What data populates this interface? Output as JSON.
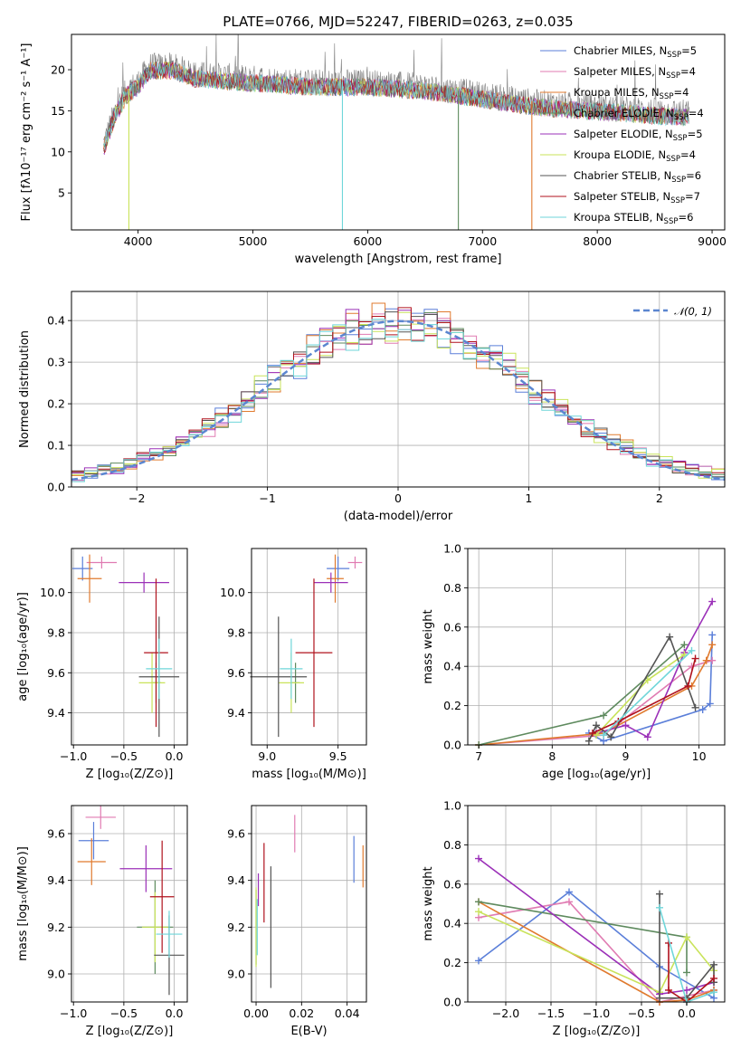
{
  "figure": {
    "title": "PLATE=0766, MJD=52247, FIBERID=0263, z=0.035"
  },
  "colors": {
    "Chabrier MILES": "#5b7fd9",
    "Salpeter MILES": "#e07bb2",
    "Kroupa MILES": "#e07a2e",
    "Chabrier ELODIE": "#5e8a5e",
    "Salpeter ELODIE": "#9b30b8",
    "Kroupa ELODIE": "#c9e35a",
    "Chabrier STELIB": "#545454",
    "Salpeter STELIB": "#b0121d",
    "Kroupa STELIB": "#6fd6d9",
    "data": "#808080",
    "normal": "#5b86d0",
    "grid": "#b0b0b0"
  },
  "legend": [
    {
      "name": "Chabrier MILES",
      "n": "5"
    },
    {
      "name": "Salpeter MILES",
      "n": "4"
    },
    {
      "name": "Kroupa MILES",
      "n": "4"
    },
    {
      "name": "Chabrier ELODIE",
      "n": "4"
    },
    {
      "name": "Salpeter ELODIE",
      "n": "5"
    },
    {
      "name": "Kroupa ELODIE",
      "n": "4"
    },
    {
      "name": "Chabrier STELIB",
      "n": "6"
    },
    {
      "name": "Salpeter STELIB",
      "n": "7"
    },
    {
      "name": "Kroupa STELIB",
      "n": "6"
    }
  ],
  "chart_data": [
    {
      "id": "spectrum",
      "type": "line",
      "title": "PLATE=0766, MJD=52247, FIBERID=0263, z=0.035",
      "xlabel": "wavelength [Angstrom, rest frame]",
      "ylabel": "Flux [fλ10⁻¹⁷ erg cm⁻² s⁻¹ A⁻¹]",
      "xlim": [
        3420,
        9110
      ],
      "ylim": [
        0.5,
        24.3
      ],
      "xticks": [
        4000,
        5000,
        6000,
        7000,
        8000,
        9000
      ],
      "yticks": [
        5,
        10,
        15,
        20
      ],
      "grid": false,
      "legend_position": "upper right",
      "continuum_knots": {
        "x": [
          3700,
          3800,
          3900,
          4000,
          4100,
          4300,
          4500,
          5000,
          5500,
          6000,
          6500,
          7000,
          7500,
          8000,
          8500,
          8800
        ],
        "y": [
          11,
          15,
          17.5,
          18.5,
          20.5,
          20.5,
          19.5,
          19,
          18.5,
          18.5,
          18,
          17,
          16,
          15.5,
          15,
          14.8
        ]
      },
      "drops": [
        {
          "series": "Kroupa ELODIE",
          "x": 3920,
          "to": 0.5
        },
        {
          "series": "Chabrier ELODIE",
          "x": 6790,
          "to": 0.5
        },
        {
          "series": "Kroupa STELIB",
          "x": 5780,
          "to": 0.5
        },
        {
          "series": "Kroupa MILES",
          "x": 7430,
          "to": 0.5
        }
      ]
    },
    {
      "id": "residuals",
      "type": "histogram",
      "xlabel": "(data-model)/error",
      "ylabel": "Normed distribution",
      "xlim": [
        -2.5,
        2.5
      ],
      "ylim": [
        0,
        0.47
      ],
      "xticks": [
        -2,
        -1,
        0,
        1,
        2
      ],
      "yticks": [
        0.0,
        0.1,
        0.2,
        0.3,
        0.4
      ],
      "grid": true,
      "bin_width": 0.1,
      "reference": {
        "name": "𝒩(0, 1)",
        "mean": 0,
        "sigma": 1
      },
      "legend_position": "upper right"
    },
    {
      "id": "age-vs-Z",
      "type": "scatter",
      "xlabel": "Z [log₁₀(Z/Z⊙)]",
      "ylabel": "age  [log₁₀(age/yr)]",
      "xlim": [
        -1.02,
        0.13
      ],
      "ylim": [
        9.24,
        10.22
      ],
      "xticks": [
        -1.0,
        -0.5,
        0.0
      ],
      "yticks": [
        9.4,
        9.6,
        9.8,
        10.0
      ],
      "grid": true,
      "points": [
        {
          "series": "Chabrier MILES",
          "x": -0.91,
          "xerr": 0.1,
          "y": 10.12,
          "yerr": 0.06
        },
        {
          "series": "Salpeter MILES",
          "x": -0.72,
          "xerr": 0.15,
          "y": 10.15,
          "yerr": 0.03
        },
        {
          "series": "Kroupa MILES",
          "x": -0.84,
          "xerr": 0.12,
          "y": 10.07,
          "yerr": 0.12
        },
        {
          "series": "Chabrier ELODIE",
          "x": -0.18,
          "xerr": 0.05,
          "y": 9.55,
          "yerr": 0.1
        },
        {
          "series": "Salpeter ELODIE",
          "x": -0.3,
          "xerr": 0.25,
          "y": 10.05,
          "yerr": 0.05
        },
        {
          "series": "Kroupa ELODIE",
          "x": -0.22,
          "xerr": 0.13,
          "y": 9.55,
          "yerr": 0.15
        },
        {
          "series": "Chabrier STELIB",
          "x": -0.15,
          "xerr": 0.2,
          "y": 9.58,
          "yerr": 0.3
        },
        {
          "series": "Salpeter STELIB",
          "x": -0.18,
          "xerr": 0.12,
          "y": 9.7,
          "yerr": 0.37
        },
        {
          "series": "Kroupa STELIB",
          "x": -0.15,
          "xerr": 0.13,
          "y": 9.62,
          "yerr": 0.15
        }
      ]
    },
    {
      "id": "age-vs-mass",
      "type": "scatter",
      "xlabel": "mass [log₁₀(M/M⊙)]",
      "ylabel": "",
      "xlim": [
        8.89,
        9.7
      ],
      "ylim": [
        9.24,
        10.22
      ],
      "xticks": [
        9.0,
        9.5
      ],
      "yticks": [
        9.4,
        9.6,
        9.8,
        10.0
      ],
      "grid": true,
      "points": [
        {
          "series": "Chabrier MILES",
          "x": 9.5,
          "xerr": 0.08,
          "y": 10.12,
          "yerr": 0.06
        },
        {
          "series": "Salpeter MILES",
          "x": 9.62,
          "xerr": 0.05,
          "y": 10.15,
          "yerr": 0.03
        },
        {
          "series": "Kroupa MILES",
          "x": 9.48,
          "xerr": 0.06,
          "y": 10.07,
          "yerr": 0.12
        },
        {
          "series": "Chabrier ELODIE",
          "x": 9.2,
          "xerr": 0.03,
          "y": 9.55,
          "yerr": 0.1
        },
        {
          "series": "Salpeter ELODIE",
          "x": 9.45,
          "xerr": 0.12,
          "y": 10.05,
          "yerr": 0.05
        },
        {
          "series": "Kroupa ELODIE",
          "x": 9.17,
          "xerr": 0.09,
          "y": 9.55,
          "yerr": 0.15
        },
        {
          "series": "Chabrier STELIB",
          "x": 9.08,
          "xerr": 0.2,
          "y": 9.58,
          "yerr": 0.3
        },
        {
          "series": "Salpeter STELIB",
          "x": 9.33,
          "xerr": 0.13,
          "y": 9.7,
          "yerr": 0.37
        },
        {
          "series": "Kroupa STELIB",
          "x": 9.17,
          "xerr": 0.08,
          "y": 9.62,
          "yerr": 0.15
        }
      ]
    },
    {
      "id": "weight-vs-age",
      "type": "line",
      "xlabel": "age  [log₁₀(age/yr)]",
      "ylabel": "mass weight",
      "xlim": [
        6.85,
        10.35
      ],
      "ylim": [
        0,
        1
      ],
      "xticks": [
        7,
        8,
        9,
        10
      ],
      "yticks": [
        0.0,
        0.2,
        0.4,
        0.6,
        0.8,
        1.0
      ],
      "grid": true,
      "series": [
        {
          "name": "Chabrier MILES",
          "x": [
            8.5,
            8.7,
            10.05,
            10.15,
            10.18
          ],
          "y": [
            0.06,
            0.02,
            0.18,
            0.21,
            0.56
          ]
        },
        {
          "name": "Salpeter MILES",
          "x": [
            7.0,
            8.7,
            9.9,
            10.18
          ],
          "y": [
            0.0,
            0.05,
            0.4,
            0.43
          ]
        },
        {
          "name": "Kroupa MILES",
          "x": [
            7.0,
            8.7,
            9.9,
            10.1,
            10.18
          ],
          "y": [
            0.0,
            0.06,
            0.3,
            0.43,
            0.51
          ]
        },
        {
          "name": "Chabrier ELODIE",
          "x": [
            7.0,
            8.7,
            9.8
          ],
          "y": [
            0.0,
            0.15,
            0.51
          ]
        },
        {
          "name": "Salpeter ELODIE",
          "x": [
            8.6,
            9.0,
            9.3,
            9.8,
            10.18
          ],
          "y": [
            0.06,
            0.1,
            0.04,
            0.47,
            0.73
          ]
        },
        {
          "name": "Kroupa ELODIE",
          "x": [
            8.6,
            9.3,
            9.8
          ],
          "y": [
            0.05,
            0.33,
            0.46
          ]
        },
        {
          "name": "Chabrier STELIB",
          "x": [
            8.5,
            8.6,
            8.8,
            9.6,
            9.95
          ],
          "y": [
            0.02,
            0.1,
            0.04,
            0.55,
            0.19
          ]
        },
        {
          "name": "Salpeter STELIB",
          "x": [
            8.55,
            8.9,
            9.85,
            9.95
          ],
          "y": [
            0.06,
            0.12,
            0.3,
            0.44
          ]
        },
        {
          "name": "Kroupa STELIB",
          "x": [
            8.7,
            9.9
          ],
          "y": [
            0.05,
            0.48
          ]
        }
      ]
    },
    {
      "id": "mass-vs-Z",
      "type": "scatter",
      "xlabel": "Z [log₁₀(Z/Z⊙)]",
      "ylabel": "mass [log₁₀(M/M⊙)]",
      "xlim": [
        -1.02,
        0.13
      ],
      "ylim": [
        8.88,
        9.72
      ],
      "xticks": [
        -1.0,
        -0.5,
        0.0
      ],
      "yticks": [
        9.0,
        9.2,
        9.4,
        9.6
      ],
      "grid": true,
      "points": [
        {
          "series": "Chabrier MILES",
          "x": -0.8,
          "xerr": 0.15,
          "y": 9.57,
          "yerr": 0.08
        },
        {
          "series": "Salpeter MILES",
          "x": -0.73,
          "xerr": 0.15,
          "y": 9.67,
          "yerr": 0.05
        },
        {
          "series": "Kroupa MILES",
          "x": -0.82,
          "xerr": 0.14,
          "y": 9.48,
          "yerr": 0.1
        },
        {
          "series": "Chabrier ELODIE",
          "x": -0.19,
          "xerr": 0.18,
          "y": 9.2,
          "yerr": 0.2
        },
        {
          "series": "Salpeter ELODIE",
          "x": -0.28,
          "xerr": 0.26,
          "y": 9.45,
          "yerr": 0.1
        },
        {
          "series": "Kroupa ELODIE",
          "x": -0.19,
          "xerr": 0.13,
          "y": 9.2,
          "yerr": 0.15
        },
        {
          "series": "Chabrier STELIB",
          "x": -0.05,
          "xerr": 0.15,
          "y": 9.08,
          "yerr": 0.17
        },
        {
          "series": "Salpeter STELIB",
          "x": -0.12,
          "xerr": 0.12,
          "y": 9.33,
          "yerr": 0.24
        },
        {
          "series": "Kroupa STELIB",
          "x": -0.05,
          "xerr": 0.13,
          "y": 9.17,
          "yerr": 0.1
        }
      ]
    },
    {
      "id": "mass-vs-ebv",
      "type": "scatter",
      "xlabel": "E(B-V)",
      "ylabel": "",
      "xlim": [
        -0.002,
        0.0485
      ],
      "ylim": [
        8.88,
        9.72
      ],
      "xticks": [
        0.0,
        0.02,
        0.04
      ],
      "yticks": [
        9.0,
        9.2,
        9.4,
        9.6
      ],
      "grid": true,
      "points": [
        {
          "series": "Chabrier MILES",
          "x": 0.043,
          "y": 9.49,
          "yerr": 0.1
        },
        {
          "series": "Salpeter MILES",
          "x": 0.017,
          "y": 9.6,
          "yerr": 0.08
        },
        {
          "series": "Kroupa MILES",
          "x": 0.047,
          "y": 9.46,
          "yerr": 0.09
        },
        {
          "series": "Chabrier ELODIE",
          "x": 0.0,
          "y": 9.2,
          "yerr": 0.16
        },
        {
          "series": "Salpeter ELODIE",
          "x": 0.001,
          "y": 9.36,
          "yerr": 0.07
        },
        {
          "series": "Kroupa ELODIE",
          "x": 0.0,
          "y": 9.2,
          "yerr": 0.17
        },
        {
          "series": "Chabrier STELIB",
          "x": 0.0065,
          "y": 9.2,
          "yerr": 0.26
        },
        {
          "series": "Salpeter STELIB",
          "x": 0.0035,
          "y": 9.39,
          "yerr": 0.17
        },
        {
          "series": "Kroupa STELIB",
          "x": 0.0005,
          "y": 9.2,
          "yerr": 0.12
        }
      ]
    },
    {
      "id": "weight-vs-Z",
      "type": "line",
      "xlabel": "Z [log₁₀(Z/Z⊙)]",
      "ylabel": "mass weight",
      "xlim": [
        -2.42,
        0.42
      ],
      "ylim": [
        0,
        1
      ],
      "xticks": [
        -2.0,
        -1.5,
        -1.0,
        -0.5,
        0.0
      ],
      "yticks": [
        0.0,
        0.2,
        0.4,
        0.6,
        0.8,
        1.0
      ],
      "grid": true,
      "series": [
        {
          "name": "Chabrier MILES",
          "x": [
            -2.3,
            -1.3,
            -0.3,
            0.3,
            0.3
          ],
          "y": [
            0.21,
            0.56,
            0.18,
            0.02,
            0.06
          ]
        },
        {
          "name": "Salpeter MILES",
          "x": [
            -2.3,
            -1.3,
            -0.3,
            0.3
          ],
          "y": [
            0.43,
            0.51,
            0.0,
            0.06
          ]
        },
        {
          "name": "Kroupa MILES",
          "x": [
            -2.3,
            -0.3,
            0.0,
            0.3
          ],
          "y": [
            0.51,
            0.0,
            0.01,
            0.06
          ]
        },
        {
          "name": "Chabrier ELODIE",
          "x": [
            -2.3,
            0.0,
            0.0
          ],
          "y": [
            0.51,
            0.33,
            0.15
          ]
        },
        {
          "name": "Salpeter ELODIE",
          "x": [
            -2.3,
            -0.3,
            0.0,
            0.3
          ],
          "y": [
            0.73,
            0.04,
            0.06,
            0.1
          ]
        },
        {
          "name": "Kroupa ELODIE",
          "x": [
            -2.3,
            -0.3,
            0.0,
            0.3
          ],
          "y": [
            0.46,
            0.05,
            0.33,
            0.16
          ]
        },
        {
          "name": "Chabrier STELIB",
          "x": [
            -0.3,
            -0.3,
            0.0,
            0.3,
            0.3
          ],
          "y": [
            0.55,
            0.02,
            0.02,
            0.19,
            0.1
          ]
        },
        {
          "name": "Salpeter STELIB",
          "x": [
            -0.2,
            -0.2,
            0.0,
            0.3
          ],
          "y": [
            0.3,
            0.06,
            0.0,
            0.12
          ]
        },
        {
          "name": "Kroupa STELIB",
          "x": [
            -0.3,
            0.0,
            0.3
          ],
          "y": [
            0.48,
            0.0,
            0.05
          ]
        }
      ]
    }
  ]
}
